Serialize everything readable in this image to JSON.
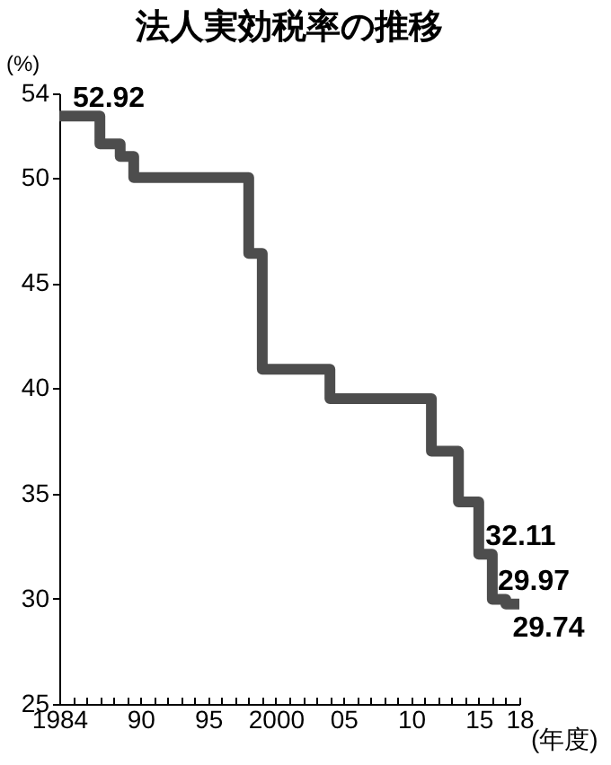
{
  "chart_data": {
    "type": "step",
    "title": "法人実効税率の推移",
    "xlabel": "(年度)",
    "ylabel": "(%)",
    "x": [
      1984,
      1987,
      1988.5,
      1989.5,
      1998,
      1999,
      2004,
      2011.5,
      2013.5,
      2015,
      2016,
      2017,
      2018
    ],
    "series": [
      {
        "color": "#4d4d4d",
        "values": [
          52.92,
          51.6,
          51.0,
          50.0,
          46.4,
          40.9,
          39.5,
          37.0,
          34.6,
          32.11,
          29.97,
          29.74,
          29.74
        ]
      }
    ],
    "xlim": [
      1984,
      2018
    ],
    "ylim": [
      25,
      54
    ],
    "xticks": [
      1984,
      {
        "value": 1985,
        "label": null
      },
      {
        "value": 1986,
        "label": null
      },
      {
        "value": 1987,
        "label": null
      },
      {
        "value": 1988,
        "label": null
      },
      {
        "value": 1989,
        "label": null
      },
      {
        "value": 1990,
        "label": "90"
      },
      {
        "value": 1991,
        "label": null
      },
      {
        "value": 1992,
        "label": null
      },
      {
        "value": 1993,
        "label": null
      },
      {
        "value": 1994,
        "label": null
      },
      {
        "value": 1995,
        "label": "95"
      },
      {
        "value": 1996,
        "label": null
      },
      {
        "value": 1997,
        "label": null
      },
      {
        "value": 1998,
        "label": null
      },
      {
        "value": 1999,
        "label": null
      },
      2000,
      {
        "value": 2001,
        "label": null
      },
      {
        "value": 2002,
        "label": null
      },
      {
        "value": 2003,
        "label": null
      },
      {
        "value": 2004,
        "label": null
      },
      {
        "value": 2005,
        "label": "05"
      },
      {
        "value": 2006,
        "label": null
      },
      {
        "value": 2007,
        "label": null
      },
      {
        "value": 2008,
        "label": null
      },
      {
        "value": 2009,
        "label": null
      },
      {
        "value": 2010,
        "label": "10"
      },
      {
        "value": 2011,
        "label": null
      },
      {
        "value": 2012,
        "label": null
      },
      {
        "value": 2013,
        "label": null
      },
      {
        "value": 2014,
        "label": null
      },
      {
        "value": 2015,
        "label": "15"
      },
      {
        "value": 2016,
        "label": null
      },
      {
        "value": 2017,
        "label": null
      },
      {
        "value": 2018,
        "label": "18"
      }
    ],
    "yticks": [
      25,
      30,
      35,
      40,
      45,
      50,
      54
    ],
    "annotations": [
      {
        "text": "52.92",
        "x": 1985,
        "y": 52.92
      },
      {
        "text": "32.11",
        "x": 2015.5,
        "y": 32.11
      },
      {
        "text": "29.97",
        "x": 2016.4,
        "y": 29.97
      },
      {
        "text": "29.74",
        "x": 2017.5,
        "y": 29.74
      }
    ],
    "grid": false
  }
}
